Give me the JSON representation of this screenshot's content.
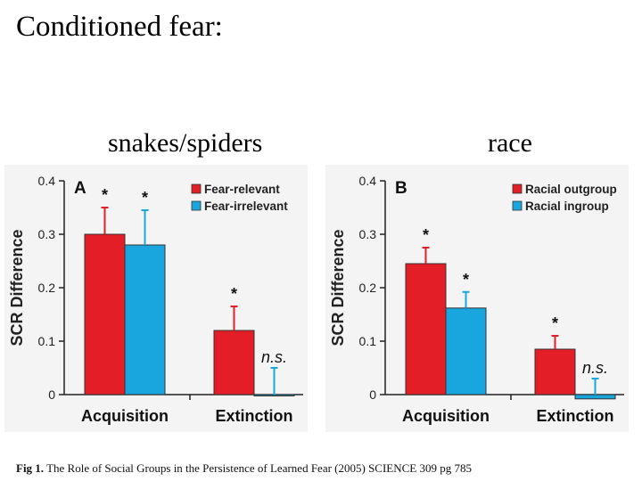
{
  "slide": {
    "title": "Conditioned fear:",
    "left_label": "snakes/spiders",
    "right_label": "race",
    "caption_prefix": "Fig 1.",
    "caption_text": "The Role of Social Groups in the Persistence of Learned Fear (2005) SCIENCE 309 pg 785"
  },
  "chart_data": [
    {
      "type": "bar",
      "panel": "A",
      "ylabel": "SCR Difference",
      "ylim": [
        0,
        0.4
      ],
      "yticks": [
        "0",
        "0.1",
        "0.2",
        "0.3",
        "0.4"
      ],
      "categories": [
        "Acquisition",
        "Extinction"
      ],
      "legend_position": "top-right",
      "series": [
        {
          "name": "Fear-relevant",
          "color": "#e41e26",
          "values": [
            0.3,
            0.12
          ],
          "errors": [
            0.05,
            0.045
          ],
          "marks": [
            "*",
            "*"
          ]
        },
        {
          "name": "Fear-irrelevant",
          "color": "#19a6de",
          "values": [
            0.28,
            -0.002
          ],
          "errors": [
            0.065,
            0.05
          ],
          "marks": [
            "*",
            "n.s."
          ]
        }
      ]
    },
    {
      "type": "bar",
      "panel": "B",
      "ylabel": "SCR Difference",
      "ylim": [
        0,
        0.4
      ],
      "yticks": [
        "0",
        "0.1",
        "0.2",
        "0.3",
        "0.4"
      ],
      "categories": [
        "Acquisition",
        "Extinction"
      ],
      "legend_position": "top-right",
      "series": [
        {
          "name": "Racial outgroup",
          "color": "#e41e26",
          "values": [
            0.245,
            0.085
          ],
          "errors": [
            0.03,
            0.025
          ],
          "marks": [
            "*",
            "*"
          ]
        },
        {
          "name": "Racial ingroup",
          "color": "#19a6de",
          "values": [
            0.162,
            -0.008
          ],
          "errors": [
            0.03,
            0.03
          ],
          "marks": [
            "*",
            "n.s."
          ]
        }
      ]
    }
  ]
}
